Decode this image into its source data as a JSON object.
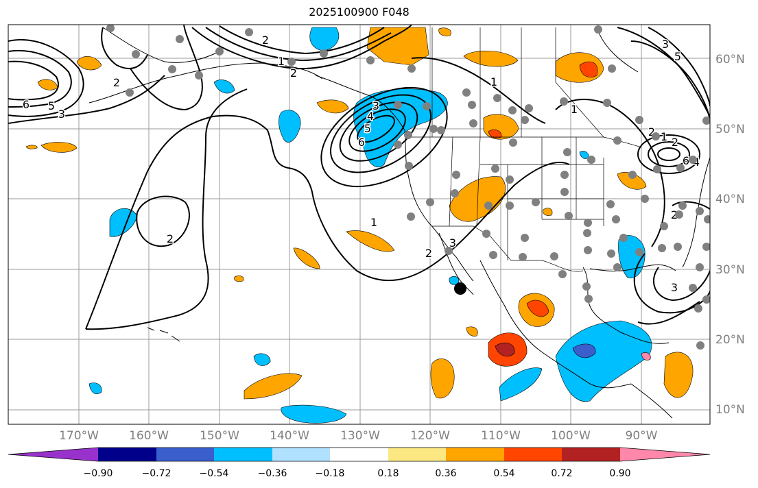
{
  "title": "2025100900 F048",
  "map": {
    "longitude_labels": [
      "170°W",
      "160°W",
      "150°W",
      "140°W",
      "130°W",
      "120°W",
      "110°W",
      "100°W",
      "90°W"
    ],
    "latitude_labels": [
      "60°N",
      "50°N",
      "40°N",
      "30°N",
      "20°N",
      "10°N"
    ],
    "contour_labels": [
      "6",
      "5",
      "3",
      "2",
      "2",
      "2",
      "1",
      "6",
      "5",
      "4",
      "3",
      "2",
      "1",
      "1",
      "2",
      "1",
      "2",
      "3",
      "5",
      "6",
      "2",
      "3",
      "4",
      "3",
      "2",
      "1"
    ],
    "marker": "current-location-dot"
  },
  "colorbar": {
    "tick_labels": [
      "−0.90",
      "−0.72",
      "−0.54",
      "−0.36",
      "−0.18",
      "0.18",
      "0.36",
      "0.54",
      "0.72",
      "0.90"
    ],
    "colors": [
      "#9932cc",
      "#00008b",
      "#3a5fcd",
      "#00bfff",
      "#b0e2ff",
      "#ffffff",
      "#fce883",
      "#ffa500",
      "#ff4500",
      "#b22222",
      "#ff88aa"
    ]
  }
}
